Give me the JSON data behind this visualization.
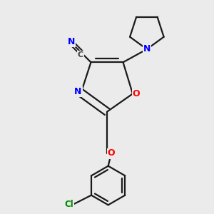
{
  "background_color": "#ebebeb",
  "bond_color": "#1a1a1a",
  "bond_width": 1.6,
  "atom_colors": {
    "N": "#0000ff",
    "O": "#ff0000",
    "Cl": "#008800",
    "C": "#333333"
  },
  "font_size_atom": 9,
  "font_size_N": 9,
  "font_size_Cl": 8.5,
  "font_size_C": 8
}
